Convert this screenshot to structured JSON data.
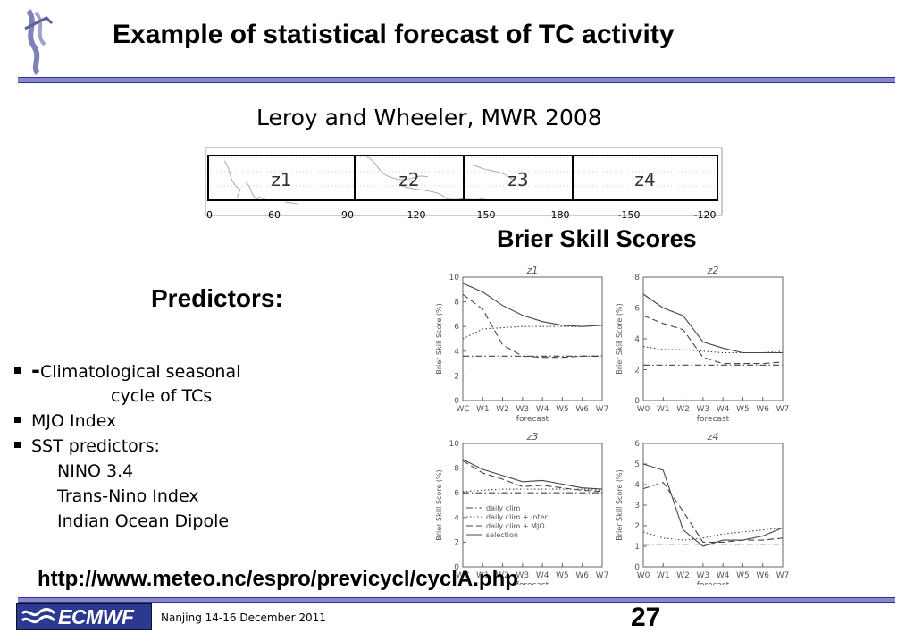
{
  "slide": {
    "title": "Example of statistical forecast of TC activity",
    "citation": "Leroy and Wheeler, MWR 2008",
    "bss_title": "Brier Skill Scores",
    "predictors_title": "Predictors:",
    "bullets": [
      {
        "dash": "-",
        "line1": "Climatological seasonal",
        "line2": "cycle of TCs"
      },
      {
        "text": "MJO Index"
      },
      {
        "text": "SST predictors:",
        "sub": [
          "NINO 3.4",
          "Trans-Nino Index",
          "Indian Ocean Dipole"
        ]
      }
    ],
    "url": "http://www.meteo.nc/espro/previcycl/cyclA.php"
  },
  "region_map": {
    "zones": [
      "z1",
      "z2",
      "z3",
      "z4"
    ],
    "lon_ticks": [
      "0",
      "60",
      "90",
      "120",
      "150",
      "180",
      "-150",
      "-120"
    ]
  },
  "chart_data": [
    {
      "type": "line",
      "title": "z1",
      "xlabel": "forecast",
      "ylabel": "Brier Skill Score (%)",
      "categories": [
        "WC",
        "W1",
        "W2",
        "W3",
        "W4",
        "W5",
        "W6",
        "W7"
      ],
      "ylim": [
        0,
        10
      ],
      "yticks": [
        "0",
        "2",
        "4",
        "6",
        "8",
        "10"
      ],
      "series": [
        {
          "style": "dashdot",
          "values": [
            3.6,
            3.6,
            3.6,
            3.6,
            3.6,
            3.6,
            3.6,
            3.6
          ]
        },
        {
          "style": "dotted",
          "values": [
            5.0,
            5.8,
            5.9,
            6.0,
            6.0,
            6.0,
            6.0,
            6.1
          ]
        },
        {
          "style": "dashed",
          "values": [
            8.6,
            7.4,
            4.5,
            3.6,
            3.5,
            3.5,
            3.6,
            3.6
          ]
        },
        {
          "style": "solid",
          "values": [
            9.5,
            8.8,
            7.7,
            6.9,
            6.4,
            6.1,
            6.0,
            6.1
          ]
        }
      ]
    },
    {
      "type": "line",
      "title": "z2",
      "xlabel": "forecast",
      "ylabel": "Brier Skill Score (%)",
      "categories": [
        "W0",
        "W1",
        "W2",
        "W3",
        "W4",
        "W5",
        "W6",
        "W7"
      ],
      "ylim": [
        0,
        8
      ],
      "yticks": [
        "0",
        "2",
        "4",
        "6",
        "8"
      ],
      "series": [
        {
          "style": "dashdot",
          "values": [
            2.3,
            2.3,
            2.3,
            2.3,
            2.3,
            2.3,
            2.3,
            2.3
          ]
        },
        {
          "style": "dotted",
          "values": [
            3.5,
            3.3,
            3.3,
            3.2,
            3.1,
            3.1,
            3.1,
            3.2
          ]
        },
        {
          "style": "dashed",
          "values": [
            5.5,
            5.0,
            4.6,
            2.8,
            2.4,
            2.4,
            2.4,
            2.5
          ]
        },
        {
          "style": "solid",
          "values": [
            6.9,
            6.0,
            5.5,
            3.8,
            3.4,
            3.1,
            3.1,
            3.1
          ]
        }
      ]
    },
    {
      "type": "line",
      "title": "z3",
      "xlabel": "forecast",
      "ylabel": "Brier Skill Score (%)",
      "categories": [
        "WC",
        "W1",
        "W2",
        "W3",
        "W4",
        "W5",
        "W6",
        "W7"
      ],
      "ylim": [
        0,
        10
      ],
      "yticks": [
        "0",
        "2",
        "4",
        "6",
        "8",
        "10"
      ],
      "legend": [
        "daily clim",
        "daily clim + inter",
        "daily clim + MJO",
        "selection"
      ],
      "legend_position": "lower-left",
      "series": [
        {
          "style": "dashdot",
          "values": [
            6.0,
            6.0,
            6.0,
            6.0,
            6.0,
            6.0,
            6.0,
            6.0
          ]
        },
        {
          "style": "dotted",
          "values": [
            6.1,
            6.2,
            6.3,
            6.3,
            6.3,
            6.3,
            6.3,
            6.2
          ]
        },
        {
          "style": "dashed",
          "values": [
            8.6,
            7.6,
            7.1,
            6.5,
            6.6,
            6.4,
            6.2,
            6.1
          ]
        },
        {
          "style": "solid",
          "values": [
            8.7,
            7.9,
            7.4,
            6.9,
            7.0,
            6.7,
            6.4,
            6.3
          ]
        }
      ]
    },
    {
      "type": "line",
      "title": "z4",
      "xlabel": "forecast",
      "ylabel": "Brier Skill Score (%)",
      "categories": [
        "W0",
        "W1",
        "W2",
        "W3",
        "W4",
        "W5",
        "W6",
        "W7"
      ],
      "ylim": [
        0,
        6
      ],
      "yticks": [
        "0",
        "1",
        "2",
        "3",
        "4",
        "5",
        "6"
      ],
      "series": [
        {
          "style": "dashdot",
          "values": [
            1.1,
            1.1,
            1.1,
            1.1,
            1.1,
            1.1,
            1.1,
            1.1
          ]
        },
        {
          "style": "dotted",
          "values": [
            1.7,
            1.4,
            1.3,
            1.4,
            1.6,
            1.7,
            1.8,
            1.9
          ]
        },
        {
          "style": "dashed",
          "values": [
            3.8,
            4.1,
            2.7,
            1.2,
            1.2,
            1.3,
            1.3,
            1.4
          ]
        },
        {
          "style": "solid",
          "values": [
            5.0,
            4.7,
            1.8,
            1.0,
            1.3,
            1.3,
            1.5,
            1.9
          ]
        }
      ]
    }
  ],
  "footer": {
    "logo_text": "ECMWF",
    "event": "Nanjing 14-16  December 2011",
    "page": "27"
  },
  "colors": {
    "rule": "#8888cc",
    "rule_border": "#333399",
    "logo_bg": "#2b3990",
    "chart_line": "#444444",
    "map_line": "#aaaaaa"
  }
}
